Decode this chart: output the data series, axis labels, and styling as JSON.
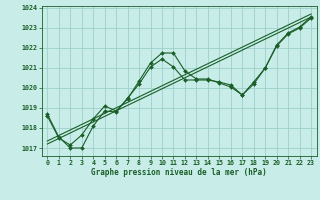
{
  "title": "Graphe pression niveau de la mer (hPa)",
  "bg_color": "#c8ede8",
  "grid_color": "#9ed0ca",
  "line_color": "#1a5e28",
  "xlim": [
    -0.5,
    23.5
  ],
  "ylim": [
    1016.6,
    1024.1
  ],
  "yticks": [
    1017,
    1018,
    1019,
    1020,
    1021,
    1022,
    1023,
    1024
  ],
  "xticks": [
    0,
    1,
    2,
    3,
    4,
    5,
    6,
    7,
    8,
    9,
    10,
    11,
    12,
    13,
    14,
    15,
    16,
    17,
    18,
    19,
    20,
    21,
    22,
    23
  ],
  "line1_x": [
    0,
    1,
    2,
    3,
    4,
    5,
    6,
    7,
    8,
    9,
    10,
    11,
    12,
    13,
    14,
    15,
    16,
    17,
    18,
    19,
    20,
    21,
    22,
    23
  ],
  "line1_y": [
    1018.7,
    1017.55,
    1017.0,
    1017.0,
    1018.1,
    1018.85,
    1018.8,
    1019.5,
    1020.2,
    1021.05,
    1021.45,
    1021.05,
    1020.4,
    1020.4,
    1020.4,
    1020.3,
    1020.15,
    1019.65,
    1020.2,
    1021.0,
    1022.1,
    1022.7,
    1023.0,
    1023.5
  ],
  "line2_x": [
    0,
    1,
    2,
    3,
    4,
    5,
    6,
    7,
    8,
    9,
    10,
    11,
    12,
    13,
    14,
    15,
    16,
    17,
    18,
    19,
    20,
    21,
    22,
    23
  ],
  "line2_y": [
    1018.6,
    1017.5,
    1017.15,
    1017.65,
    1018.45,
    1019.1,
    1018.85,
    1019.45,
    1020.35,
    1021.25,
    1021.75,
    1021.75,
    1020.85,
    1020.45,
    1020.45,
    1020.25,
    1020.05,
    1019.65,
    1020.3,
    1021.0,
    1022.15,
    1022.75,
    1023.05,
    1023.55
  ],
  "trend_x": [
    0,
    23
  ],
  "trend_y": [
    1017.35,
    1023.7
  ],
  "trend2_x": [
    0,
    23
  ],
  "trend2_y": [
    1017.2,
    1023.55
  ],
  "marker": "D",
  "markersize": 2.0,
  "linewidth": 0.8,
  "title_fontsize": 5.5,
  "tick_fontsize": 4.8
}
